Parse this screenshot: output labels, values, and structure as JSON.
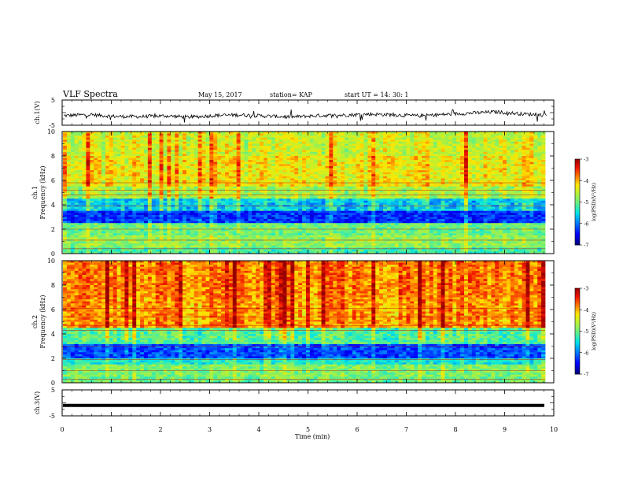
{
  "header": {
    "title": "VLF Spectra",
    "date": "May 15, 2017",
    "station": "station= KAP",
    "start": "start  UT  =   14: 30: 1"
  },
  "colors": {
    "colormap": [
      "#000080",
      "#0000ff",
      "#0080ff",
      "#00ffff",
      "#80ff80",
      "#ffff00",
      "#ff8000",
      "#ff0000",
      "#800000",
      "#ffffff"
    ],
    "trace": "#000000"
  },
  "chart_data": [
    {
      "type": "line",
      "ylabel": "ch.1(V)",
      "ylim": [
        -5,
        5
      ],
      "yticks": [
        "5",
        "-5"
      ],
      "xlim": [
        0,
        10
      ],
      "description_level": "noisy waveform oscillating around -1 V",
      "series": [
        {
          "values": [
            -1.2,
            -0.8,
            -1.5,
            -1.6,
            -1.3,
            -1.8,
            -1.1,
            -0.9,
            -1.4,
            -1.7,
            -1.2,
            -1.0,
            -0.6,
            -0.9,
            -1.3,
            -0.7,
            -0.2,
            0.3,
            -0.5,
            -1.0
          ]
        }
      ]
    },
    {
      "type": "heatmap",
      "ylabel": "ch.1\nFrequency (kHz)",
      "ylim": [
        0,
        10
      ],
      "yticks": [
        "0",
        "2",
        "4",
        "6",
        "8",
        "10"
      ],
      "xlim": [
        0,
        10
      ],
      "colorbar": {
        "label": "log(PSD)(V²/Hz)",
        "range": [
          -7,
          -3
        ],
        "ticks": [
          "-3",
          "-4",
          "-5",
          "-6",
          "-7"
        ]
      },
      "bands_khz_log_psd": [
        {
          "from": 0.0,
          "to": 0.5,
          "value": -5.2
        },
        {
          "from": 0.5,
          "to": 1.5,
          "value": -4.8
        },
        {
          "from": 1.5,
          "to": 2.5,
          "value": -5.0
        },
        {
          "from": 2.5,
          "to": 3.5,
          "value": -6.3
        },
        {
          "from": 3.5,
          "to": 4.5,
          "value": -5.6
        },
        {
          "from": 4.5,
          "to": 5.5,
          "value": -4.7
        },
        {
          "from": 5.5,
          "to": 8.0,
          "value": -4.3
        },
        {
          "from": 8.0,
          "to": 10.0,
          "value": -4.5
        }
      ]
    },
    {
      "type": "heatmap",
      "ylabel": "ch.2\nFrequency (kHz)",
      "ylim": [
        0,
        10
      ],
      "yticks": [
        "0",
        "2",
        "4",
        "6",
        "8",
        "10"
      ],
      "xlim": [
        0,
        10
      ],
      "colorbar": {
        "label": "log(PSD)(V²/Hz)",
        "range": [
          -7,
          -3
        ],
        "ticks": [
          "-3",
          "-4",
          "-5",
          "-6",
          "-7"
        ]
      },
      "bands_khz_log_psd": [
        {
          "from": 0.0,
          "to": 0.5,
          "value": -5.0
        },
        {
          "from": 0.5,
          "to": 1.5,
          "value": -4.9
        },
        {
          "from": 1.5,
          "to": 2.0,
          "value": -5.4
        },
        {
          "from": 2.0,
          "to": 3.2,
          "value": -6.2
        },
        {
          "from": 3.2,
          "to": 4.5,
          "value": -5.1
        },
        {
          "from": 4.5,
          "to": 7.0,
          "value": -3.9
        },
        {
          "from": 7.0,
          "to": 10.0,
          "value": -3.8
        }
      ]
    },
    {
      "type": "line",
      "ylabel": "ch.3(V)",
      "ylim": [
        -5,
        5
      ],
      "yticks": [
        "5",
        "-5"
      ],
      "xlim": [
        0,
        10
      ],
      "xlabel": "Time (min)",
      "xticks": [
        "0",
        "1",
        "2",
        "3",
        "4",
        "5",
        "6",
        "7",
        "8",
        "9",
        "10"
      ],
      "series": [
        {
          "values": [
            -1.0,
            -1.0,
            -1.0,
            -1.0,
            -1.0,
            -1.0,
            -1.0,
            -1.0,
            -1.0,
            -1.0
          ]
        }
      ]
    }
  ]
}
